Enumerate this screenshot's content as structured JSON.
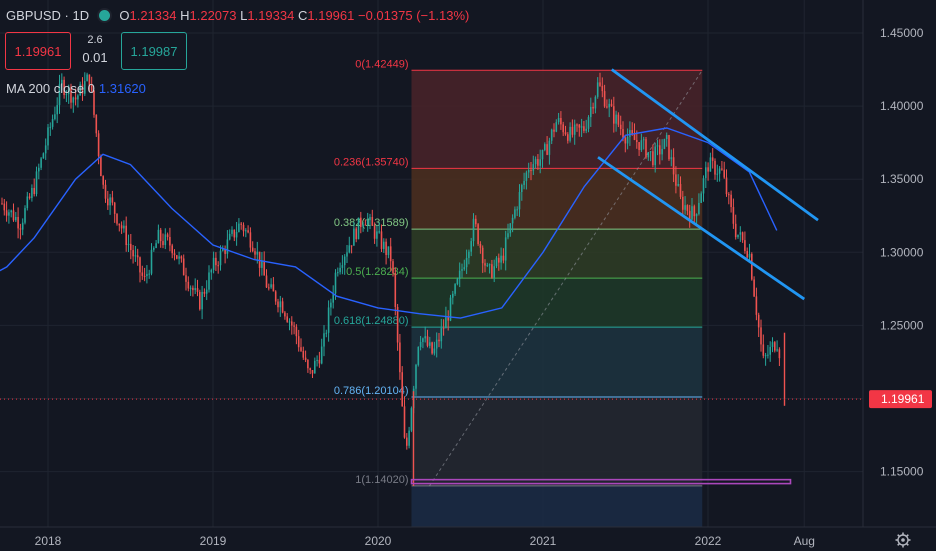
{
  "header": {
    "symbol": "GBPUSD",
    "interval": "1D",
    "ohlc": {
      "o": "1.21334",
      "h": "1.22073",
      "l": "1.19334",
      "c": "1.19961",
      "change": "−0.01375",
      "change_pct": "(−1.13%)"
    },
    "sell_price": "1.19961",
    "buy_price": "1.19987",
    "spread_top": "2.6",
    "spread_bottom": "0.01",
    "ma_label": "MA 200 close 0",
    "ma_value": "1.31620"
  },
  "colors": {
    "bg": "#131722",
    "up": "#26a69a",
    "down": "#ef5350",
    "ma": "#2962ff",
    "channel": "#2196f3",
    "accent_red": "#f23645"
  },
  "chart_data": {
    "type": "candlestick",
    "symbol": "GBPUSD",
    "interval": "1D",
    "ylim": [
      1.1,
      1.48
    ],
    "y_ticks": [
      "1.45000",
      "1.40000",
      "1.35000",
      "1.30000",
      "1.25000",
      "1.20000",
      "1.15000"
    ],
    "x_ticks": [
      "2018",
      "2019",
      "2020",
      "2021",
      "2022",
      "Aug"
    ],
    "last_price": "1.19961",
    "price_path": [
      [
        "2017-07",
        1.3
      ],
      [
        "2017-09",
        1.34
      ],
      [
        "2017-11",
        1.32
      ],
      [
        "2017-12",
        1.345
      ],
      [
        "2018-01",
        1.38
      ],
      [
        "2018-02",
        1.415
      ],
      [
        "2018-03",
        1.405
      ],
      [
        "2018-04",
        1.42
      ],
      [
        "2018-05",
        1.345
      ],
      [
        "2018-06",
        1.325
      ],
      [
        "2018-08",
        1.28
      ],
      [
        "2018-09",
        1.31
      ],
      [
        "2018-10",
        1.305
      ],
      [
        "2018-11",
        1.285
      ],
      [
        "2018-12",
        1.265
      ],
      [
        "2019-01",
        1.29
      ],
      [
        "2019-03",
        1.32
      ],
      [
        "2019-04",
        1.305
      ],
      [
        "2019-05",
        1.275
      ],
      [
        "2019-06",
        1.265
      ],
      [
        "2019-07",
        1.245
      ],
      [
        "2019-08",
        1.215
      ],
      [
        "2019-09",
        1.235
      ],
      [
        "2019-10",
        1.29
      ],
      [
        "2019-12",
        1.325
      ],
      [
        "2020-01",
        1.31
      ],
      [
        "2020-02",
        1.295
      ],
      [
        "2020-03",
        1.16
      ],
      [
        "2020-04",
        1.245
      ],
      [
        "2020-05",
        1.23
      ],
      [
        "2020-06",
        1.255
      ],
      [
        "2020-07",
        1.285
      ],
      [
        "2020-08",
        1.32
      ],
      [
        "2020-09",
        1.285
      ],
      [
        "2020-10",
        1.295
      ],
      [
        "2020-11",
        1.33
      ],
      [
        "2020-12",
        1.36
      ],
      [
        "2021-01",
        1.365
      ],
      [
        "2021-02",
        1.39
      ],
      [
        "2021-03",
        1.38
      ],
      [
        "2021-04",
        1.385
      ],
      [
        "2021-05",
        1.415
      ],
      [
        "2021-06",
        1.395
      ],
      [
        "2021-07",
        1.38
      ],
      [
        "2021-08",
        1.375
      ],
      [
        "2021-09",
        1.365
      ],
      [
        "2021-10",
        1.375
      ],
      [
        "2021-11",
        1.335
      ],
      [
        "2021-12",
        1.325
      ],
      [
        "2022-01",
        1.36
      ],
      [
        "2022-02",
        1.355
      ],
      [
        "2022-03",
        1.315
      ],
      [
        "2022-04",
        1.3
      ],
      [
        "2022-05",
        1.225
      ],
      [
        "2022-06",
        1.24
      ],
      [
        "2022-07",
        1.2
      ]
    ],
    "ma200": [
      [
        "2017-07",
        1.275
      ],
      [
        "2017-10",
        1.29
      ],
      [
        "2017-12",
        1.31
      ],
      [
        "2018-03",
        1.35
      ],
      [
        "2018-05",
        1.367
      ],
      [
        "2018-07",
        1.36
      ],
      [
        "2018-10",
        1.33
      ],
      [
        "2019-01",
        1.305
      ],
      [
        "2019-04",
        1.295
      ],
      [
        "2019-07",
        1.29
      ],
      [
        "2019-10",
        1.27
      ],
      [
        "2020-01",
        1.262
      ],
      [
        "2020-04",
        1.258
      ],
      [
        "2020-07",
        1.255
      ],
      [
        "2020-10",
        1.262
      ],
      [
        "2021-01",
        1.3
      ],
      [
        "2021-04",
        1.345
      ],
      [
        "2021-07",
        1.38
      ],
      [
        "2021-10",
        1.385
      ],
      [
        "2022-01",
        1.375
      ],
      [
        "2022-04",
        1.355
      ],
      [
        "2022-06",
        1.315
      ]
    ],
    "fibonacci": {
      "levels": [
        {
          "ratio": "0",
          "price": 1.42449,
          "label": "0(1.42449)",
          "color": "#f23645",
          "fill": "#4a2329"
        },
        {
          "ratio": "0.236",
          "price": 1.3574,
          "label": "0.236(1.35740)",
          "color": "#f23645",
          "fill": "#4d2f1e"
        },
        {
          "ratio": "0.382",
          "price": 1.31589,
          "label": "0.382(1.31589)",
          "color": "#81c784",
          "fill": "#2f3d24"
        },
        {
          "ratio": "0.5",
          "price": 1.28234,
          "label": "0.5(1.28234)",
          "color": "#4caf50",
          "fill": "#1e3a28"
        },
        {
          "ratio": "0.618",
          "price": 1.2488,
          "label": "0.618(1.24880)",
          "color": "#26a69a",
          "fill": "#1d3440"
        },
        {
          "ratio": "0.786",
          "price": 1.20104,
          "label": "0.786(1.20104)",
          "color": "#64b5f6",
          "fill": "#252830"
        },
        {
          "ratio": "1",
          "price": 1.1402,
          "label": "1(1.14020)",
          "color": "#787b86",
          "fill": "#1b2b45"
        }
      ],
      "start": "2020-03",
      "end": "2021-12"
    },
    "channel_lines": [
      {
        "from": [
          "2021-06",
          1.425
        ],
        "to": [
          "2022-09",
          1.322
        ]
      },
      {
        "from": [
          "2021-05",
          1.365
        ],
        "to": [
          "2022-08",
          1.268
        ]
      }
    ],
    "horizontal_box": {
      "from": "2020-03",
      "to": "2022-07",
      "price_top": 1.1445,
      "price_bottom": 1.1418
    }
  }
}
